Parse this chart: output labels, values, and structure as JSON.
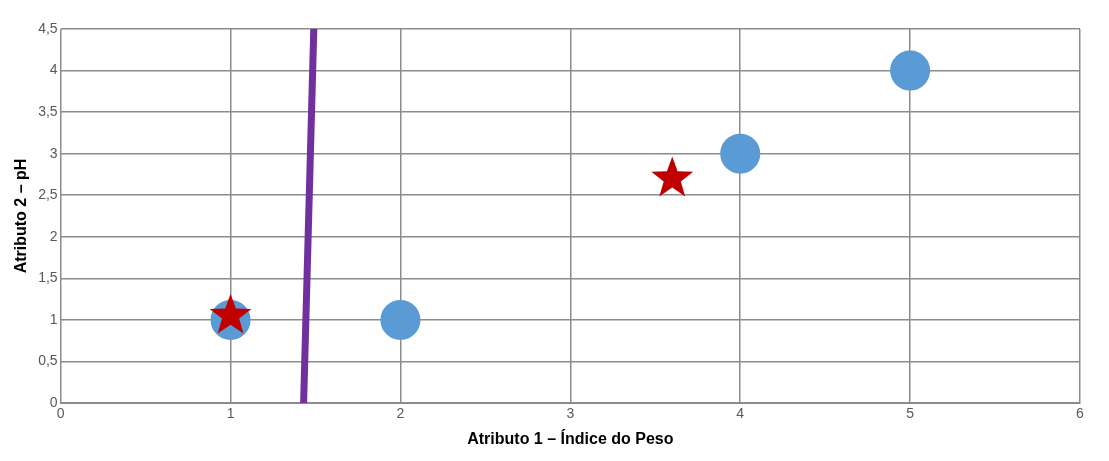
{
  "chart_data": {
    "type": "scatter",
    "xlabel": "Atributo 1 – Índice do Peso",
    "ylabel": "Atributo 2 – pH",
    "xlim": [
      0,
      6
    ],
    "xticks": [
      0,
      1,
      2,
      3,
      4,
      5,
      6
    ],
    "ylim": [
      0,
      4.5
    ],
    "yticks": [
      0,
      {
        "value": 0.5,
        "label": "0,5"
      },
      1,
      {
        "value": 1.5,
        "label": "1,5"
      },
      2,
      {
        "value": 2.5,
        "label": "2,5"
      },
      3,
      {
        "value": 3.5,
        "label": "3,5"
      },
      4,
      {
        "value": 4.5,
        "label": "4,5"
      }
    ],
    "grid": true,
    "legend": false,
    "series": [
      {
        "type": "scatter",
        "marker": "circle",
        "color": "#5b9bd5",
        "x": [
          1,
          2,
          4,
          5
        ],
        "values": [
          1,
          1,
          3,
          4
        ]
      },
      {
        "type": "scatter",
        "marker": "star",
        "color": "#c00000",
        "x": [
          1,
          3.6
        ],
        "values": [
          1.05,
          2.7
        ]
      },
      {
        "type": "line",
        "marker": "none",
        "color": "#7030a0",
        "x": [
          1.43,
          1.49
        ],
        "values": [
          0,
          4.5
        ]
      }
    ]
  }
}
